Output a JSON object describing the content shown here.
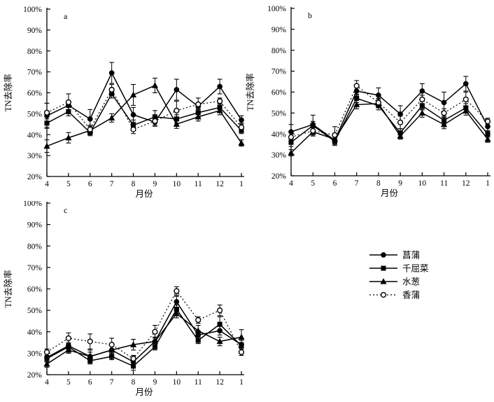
{
  "figure": {
    "background": "#ffffff",
    "foreground": "#000000",
    "ylabel": "TN去除率",
    "xlabel": "月份"
  },
  "legend": {
    "items": [
      {
        "label": "菖蒲",
        "marker": "filled-circle",
        "line": "solid"
      },
      {
        "label": "千屈菜",
        "marker": "filled-square",
        "line": "solid"
      },
      {
        "label": "水葱",
        "marker": "filled-triangle",
        "line": "solid"
      },
      {
        "label": "香蒲",
        "marker": "open-circle",
        "line": "dotted"
      }
    ]
  },
  "chart_data": [
    {
      "type": "line",
      "panel": "a",
      "xlabel": "月份",
      "ylabel": "TN去除率",
      "x": [
        "4",
        "5",
        "6",
        "7",
        "8",
        "9",
        "10",
        "11",
        "12",
        "1"
      ],
      "ylim": [
        20,
        100
      ],
      "yticks": [
        20,
        30,
        40,
        50,
        60,
        70,
        80,
        90,
        100
      ],
      "ytick_suffix": "%",
      "grid": false,
      "legend_position": "shared-right",
      "series": [
        {
          "name": "菖蒲",
          "marker": "filled-circle",
          "line": "solid",
          "values": [
            49,
            54,
            47.5,
            69.5,
            49.5,
            46,
            61.5,
            53.5,
            63,
            47
          ],
          "errors": [
            6,
            2,
            4.5,
            5,
            3.5,
            2,
            5,
            1.5,
            3.5,
            2
          ]
        },
        {
          "name": "千屈菜",
          "marker": "filled-square",
          "line": "solid",
          "values": [
            45.5,
            51,
            41,
            59.5,
            44.5,
            48.5,
            47.5,
            50.5,
            53,
            42
          ],
          "errors": [
            2,
            2,
            1.5,
            2,
            2.5,
            3,
            2,
            2,
            2,
            1.5
          ]
        },
        {
          "name": "水葱",
          "marker": "filled-triangle",
          "line": "solid",
          "values": [
            34.5,
            38.5,
            42,
            48,
            59,
            63.5,
            45,
            48.5,
            51.5,
            36
          ],
          "errors": [
            3,
            2.5,
            2,
            2,
            5,
            3.5,
            2,
            2,
            2,
            1.5
          ]
        },
        {
          "name": "香蒲",
          "marker": "open-circle",
          "line": "dotted",
          "values": [
            50.5,
            55.5,
            42.5,
            61.5,
            42.5,
            46.5,
            51.5,
            54.5,
            56,
            43.5
          ],
          "errors": [
            4.5,
            4,
            2,
            2.5,
            2,
            2,
            4.5,
            3,
            1.5,
            2
          ]
        }
      ]
    },
    {
      "type": "line",
      "panel": "b",
      "xlabel": "月份",
      "ylabel": "TN去除率",
      "x": [
        "4",
        "5",
        "6",
        "7",
        "8",
        "9",
        "10",
        "11",
        "12",
        "1"
      ],
      "ylim": [
        20,
        100
      ],
      "yticks": [
        20,
        30,
        40,
        50,
        60,
        70,
        80,
        90,
        100
      ],
      "ytick_suffix": "%",
      "grid": false,
      "legend_position": "shared-right",
      "series": [
        {
          "name": "菖蒲",
          "marker": "filled-circle",
          "line": "solid",
          "values": [
            41,
            44.5,
            37,
            60.5,
            58.5,
            49.5,
            60.5,
            55,
            64,
            43.5
          ],
          "errors": [
            3.5,
            4.5,
            2,
            2,
            3.5,
            4,
            3.5,
            5,
            3.5,
            2
          ]
        },
        {
          "name": "千屈菜",
          "marker": "filled-square",
          "line": "solid",
          "values": [
            36,
            44,
            36.5,
            57,
            53.5,
            40.5,
            53.5,
            46.5,
            52.5,
            40
          ],
          "errors": [
            2,
            2,
            2,
            2,
            2,
            2,
            2,
            2,
            2,
            1.5
          ]
        },
        {
          "name": "水葱",
          "marker": "filled-triangle",
          "line": "solid",
          "values": [
            31,
            41,
            37.5,
            54,
            54.5,
            39,
            50,
            44.5,
            51,
            37.5
          ],
          "errors": [
            1.5,
            2,
            2,
            2,
            2,
            1.5,
            2,
            2,
            2,
            1.5
          ]
        },
        {
          "name": "香蒲",
          "marker": "open-circle",
          "line": "dotted",
          "values": [
            38.5,
            41.5,
            39.5,
            63,
            55,
            45.5,
            56.5,
            50,
            56.5,
            46
          ],
          "errors": [
            2,
            2,
            4,
            2.5,
            2,
            3,
            2,
            2,
            3.5,
            1.5
          ]
        }
      ]
    },
    {
      "type": "line",
      "panel": "c",
      "xlabel": "月份",
      "ylabel": "TN去除率",
      "x": [
        "4",
        "5",
        "6",
        "7",
        "8",
        "9",
        "10",
        "11",
        "12",
        "1"
      ],
      "ylim": [
        20,
        100
      ],
      "yticks": [
        20,
        30,
        40,
        50,
        60,
        70,
        80,
        90,
        100
      ],
      "ytick_suffix": "%",
      "grid": false,
      "legend_position": "shared-right",
      "series": [
        {
          "name": "菖蒲",
          "marker": "filled-circle",
          "line": "solid",
          "values": [
            28,
            33.5,
            28.5,
            31.5,
            26,
            35.5,
            54,
            38.5,
            40.5,
            34
          ],
          "errors": [
            2,
            1.5,
            2,
            2.5,
            2,
            2,
            2.5,
            2,
            2,
            2
          ]
        },
        {
          "name": "千屈菜",
          "marker": "filled-square",
          "line": "solid",
          "values": [
            27.5,
            33,
            26.5,
            28.5,
            24,
            33,
            50.5,
            36,
            43.5,
            33.5
          ],
          "errors": [
            1.5,
            1.5,
            1.5,
            1.5,
            2,
            1.5,
            2,
            1.5,
            3.5,
            1.5
          ]
        },
        {
          "name": "水葱",
          "marker": "filled-triangle",
          "line": "solid",
          "values": [
            25,
            31.5,
            28.5,
            31.5,
            34,
            35.5,
            48.5,
            40.5,
            35.5,
            37.5
          ],
          "errors": [
            1.5,
            1.5,
            3,
            2,
            2.5,
            2,
            2,
            2.5,
            2,
            3.5
          ]
        },
        {
          "name": "香蒲",
          "marker": "open-circle",
          "line": "dotted",
          "values": [
            30.5,
            37,
            35.5,
            34,
            27.5,
            40,
            59,
            45.5,
            50,
            30.5
          ],
          "errors": [
            1.5,
            2.5,
            3.5,
            3,
            1.5,
            3,
            2,
            1.5,
            2.5,
            1.5
          ]
        }
      ]
    }
  ]
}
